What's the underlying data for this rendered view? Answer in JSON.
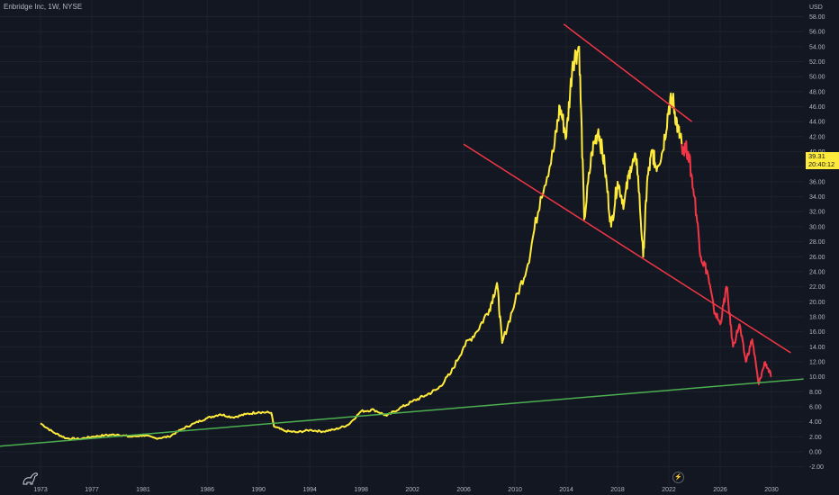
{
  "header": {
    "title": "Enbridge Inc, 1W, NYSE"
  },
  "price_badge": {
    "price": "39.31",
    "timer": "20:40:12"
  },
  "icons": {
    "logo": "dinosaur-logo-icon",
    "snapshot": "lightning-icon"
  },
  "colors": {
    "background": "#131722",
    "price_line": "#ffeb3b",
    "projection_line": "#f23645",
    "channel_line": "#f23645",
    "support_line": "#4caf50"
  },
  "chart_data": {
    "type": "line",
    "y_axis_unit": "USD",
    "ylim": [
      -2,
      58
    ],
    "y_ticks": [
      "58.00",
      "56.00",
      "54.00",
      "52.00",
      "50.00",
      "48.00",
      "46.00",
      "44.00",
      "42.00",
      "40.00",
      "38.00",
      "36.00",
      "34.00",
      "32.00",
      "30.00",
      "28.00",
      "26.00",
      "24.00",
      "22.00",
      "20.00",
      "18.00",
      "16.00",
      "14.00",
      "12.00",
      "10.00",
      "8.00",
      "6.00",
      "4.00",
      "2.00",
      "0.00",
      "-2.00"
    ],
    "x_ticks": [
      "1973",
      "1977",
      "1981",
      "1986",
      "1990",
      "1994",
      "1998",
      "2002",
      "2006",
      "2010",
      "2014",
      "2018",
      "2022",
      "2026",
      "2030"
    ],
    "series": [
      {
        "values_x": [
          1973.0,
          1974.0,
          1975.0,
          1976.0,
          1977.0,
          1978.0,
          1979.0,
          1980.0,
          1981.0,
          1982.0,
          1983.0,
          1984.0,
          1985.0,
          1986.0,
          1987.0,
          1988.0,
          1989.0,
          1990.0,
          1991.0,
          1991.2,
          1992.0,
          1993.0,
          1994.0,
          1995.0,
          1996.0,
          1997.0,
          1998.0,
          1999.0,
          2000.0,
          2001.0,
          2002.0,
          2003.0,
          2004.0,
          2005.0,
          2006.0,
          2007.0,
          2008.0,
          2008.6,
          2009.0,
          2010.0,
          2011.0,
          2012.0,
          2013.0,
          2013.5,
          2014.0,
          2014.5,
          2015.0,
          2015.4,
          2016.0,
          2016.5,
          2017.0,
          2017.5,
          2018.0,
          2018.5,
          2019.0,
          2019.5,
          2020.0,
          2020.3,
          2020.7,
          2021.0,
          2021.5,
          2022.0,
          2022.3,
          2022.7,
          2023.0
        ],
        "values_y": [
          3.8,
          2.6,
          1.8,
          1.7,
          2.0,
          2.2,
          2.3,
          2.0,
          2.2,
          1.8,
          2.0,
          3.0,
          3.8,
          4.5,
          5.0,
          4.6,
          5.0,
          5.3,
          5.2,
          3.4,
          2.8,
          2.6,
          2.9,
          2.7,
          3.0,
          3.6,
          5.4,
          5.6,
          4.8,
          5.8,
          6.7,
          7.5,
          8.4,
          10.5,
          14.0,
          16.0,
          19.0,
          22.5,
          14.5,
          20.0,
          25.0,
          34.0,
          40.0,
          46.0,
          42.0,
          52.0,
          54.0,
          31.0,
          40.0,
          43.0,
          38.0,
          30.0,
          36.0,
          33.0,
          38.0,
          39.0,
          26.0,
          36.0,
          40.0,
          38.0,
          40.0,
          46.0,
          47.0,
          43.0,
          41.0
        ]
      },
      {
        "values_x": [
          2023.0,
          2023.5,
          2024.0,
          2024.5,
          2025.0,
          2025.5,
          2026.0,
          2026.5,
          2027.0,
          2027.5,
          2028.0,
          2028.5,
          2029.0,
          2029.5,
          2030.0
        ],
        "values_y": [
          41.0,
          40.0,
          34.0,
          26.0,
          24.0,
          19.0,
          17.0,
          22.0,
          14.0,
          17.0,
          12.0,
          15.0,
          9.0,
          12.0,
          10.0
        ]
      }
    ],
    "trendlines": [
      {
        "x": [
          2013.8,
          2023.8
        ],
        "y": [
          57.0,
          44.0
        ]
      },
      {
        "x": [
          2006.0,
          2031.5
        ],
        "y": [
          41.0,
          13.2
        ]
      },
      {
        "x": [
          1969.5,
          2032.5
        ],
        "y": [
          0.7,
          9.7
        ]
      }
    ]
  }
}
